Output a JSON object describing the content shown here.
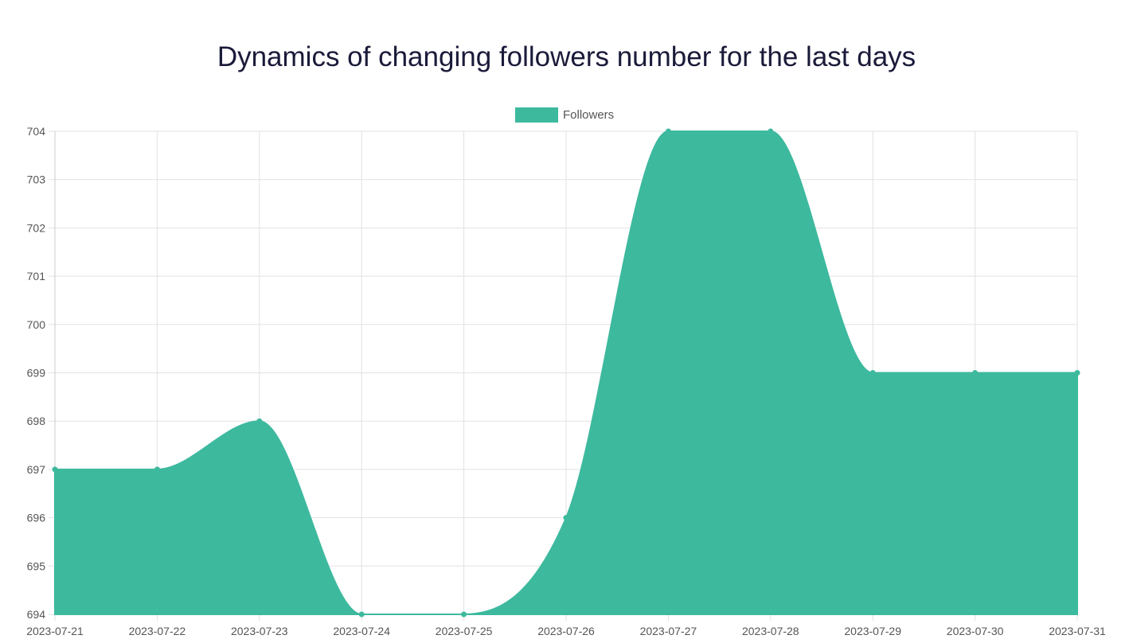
{
  "chart_data": {
    "type": "area",
    "title": "Dynamics of changing followers number for the last days",
    "categories": [
      "2023-07-21",
      "2023-07-22",
      "2023-07-23",
      "2023-07-24",
      "2023-07-25",
      "2023-07-26",
      "2023-07-27",
      "2023-07-28",
      "2023-07-29",
      "2023-07-30",
      "2023-07-31"
    ],
    "series": [
      {
        "name": "Followers",
        "values": [
          697,
          697,
          698,
          694,
          694,
          696,
          704,
          704,
          699,
          699,
          699
        ]
      }
    ],
    "ylim": [
      694,
      704
    ],
    "yticks": [
      "694",
      "695",
      "696",
      "697",
      "698",
      "699",
      "700",
      "701",
      "702",
      "703",
      "704"
    ],
    "grid": true,
    "legend": "top-center",
    "curve": "smooth",
    "colors": {
      "fill": "#3db99e",
      "grid": "#e2e2e2",
      "axis": "#cccccc",
      "text": "#555555",
      "title": "#1a1a3a"
    }
  }
}
